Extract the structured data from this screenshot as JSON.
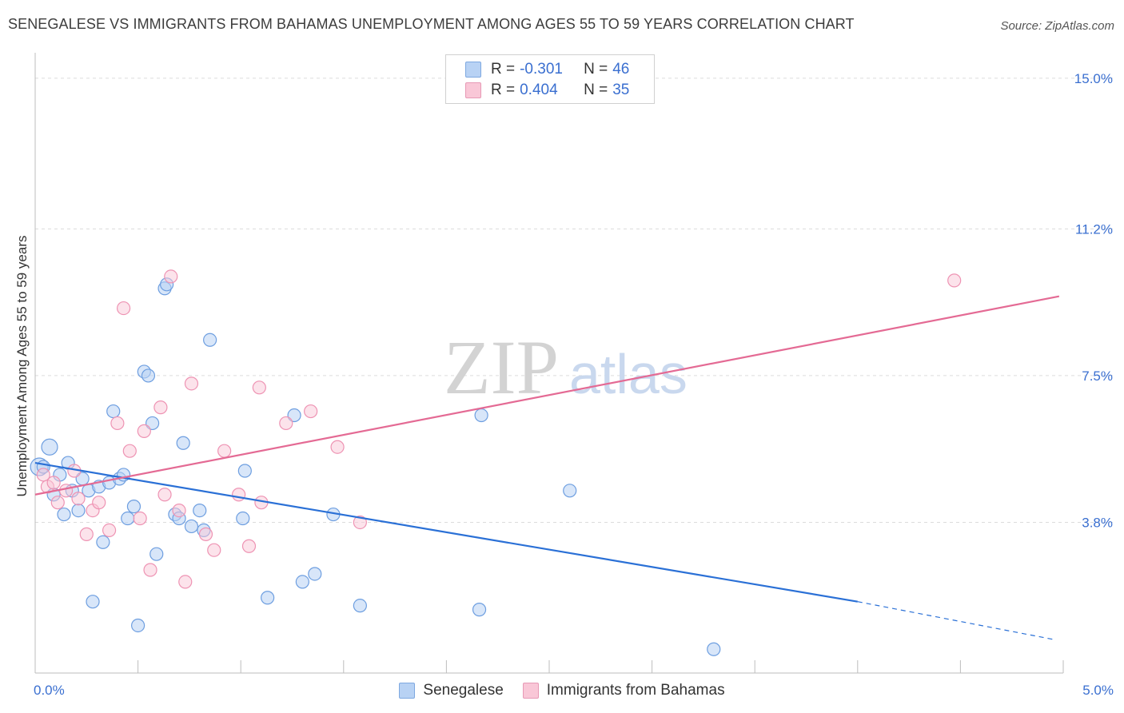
{
  "title": "SENEGALESE VS IMMIGRANTS FROM BAHAMAS UNEMPLOYMENT AMONG AGES 55 TO 59 YEARS CORRELATION CHART",
  "source": "Source: ZipAtlas.com",
  "watermark": {
    "zip": "ZIP",
    "atlas": "atlas"
  },
  "legend": {
    "r_label": "R =",
    "n_label": "N =",
    "series": [
      {
        "name": "Senegalese",
        "r": "-0.301",
        "n": "46"
      },
      {
        "name": "Immigrants from Bahamas",
        "r": "0.404",
        "n": "35"
      }
    ]
  },
  "chart_data": {
    "type": "scatter",
    "title": "SENEGALESE VS IMMIGRANTS FROM BAHAMAS UNEMPLOYMENT AMONG AGES 55 TO 59 YEARS CORRELATION CHART",
    "xlabel": "",
    "ylabel": "Unemployment Among Ages 55 to 59 years",
    "xlim": [
      0,
      5
    ],
    "ylim": [
      0,
      15.4
    ],
    "x_tick_labels": [
      {
        "value": 0,
        "label": "0.0%"
      },
      {
        "value": 5,
        "label": "5.0%"
      }
    ],
    "y_ticks": [
      {
        "value": 3.8,
        "label": "3.8%"
      },
      {
        "value": 7.5,
        "label": "7.5%"
      },
      {
        "value": 11.2,
        "label": "11.2%"
      },
      {
        "value": 15.0,
        "label": "15.0%"
      }
    ],
    "grid": true,
    "legend_position": "top-center",
    "colors": {
      "senegalese": "#6d9ee0",
      "bahamas": "#ee93b3",
      "blue_line": "#2a70d6",
      "pink_line": "#e46a94"
    },
    "series": [
      {
        "name": "Senegalese",
        "points": [
          [
            0.02,
            5.2
          ],
          [
            0.04,
            5.2
          ],
          [
            0.07,
            5.7
          ],
          [
            0.09,
            4.5
          ],
          [
            0.12,
            5.0
          ],
          [
            0.14,
            4.0
          ],
          [
            0.16,
            5.3
          ],
          [
            0.18,
            4.6
          ],
          [
            0.21,
            4.1
          ],
          [
            0.23,
            4.9
          ],
          [
            0.26,
            4.6
          ],
          [
            0.28,
            1.8
          ],
          [
            0.31,
            4.7
          ],
          [
            0.33,
            3.3
          ],
          [
            0.36,
            4.8
          ],
          [
            0.38,
            6.6
          ],
          [
            0.41,
            4.9
          ],
          [
            0.43,
            5.0
          ],
          [
            0.45,
            3.9
          ],
          [
            0.48,
            4.2
          ],
          [
            0.5,
            1.2
          ],
          [
            0.53,
            7.6
          ],
          [
            0.55,
            7.5
          ],
          [
            0.57,
            6.3
          ],
          [
            0.59,
            3.0
          ],
          [
            0.63,
            9.7
          ],
          [
            0.64,
            9.8
          ],
          [
            0.68,
            4.0
          ],
          [
            0.7,
            3.9
          ],
          [
            0.72,
            5.8
          ],
          [
            0.76,
            3.7
          ],
          [
            0.8,
            4.1
          ],
          [
            0.82,
            3.6
          ],
          [
            0.85,
            8.4
          ],
          [
            1.02,
            5.1
          ],
          [
            1.01,
            3.9
          ],
          [
            1.13,
            1.9
          ],
          [
            1.26,
            6.5
          ],
          [
            1.3,
            2.3
          ],
          [
            1.36,
            2.5
          ],
          [
            1.45,
            4.0
          ],
          [
            1.58,
            1.7
          ],
          [
            2.17,
            6.5
          ],
          [
            2.16,
            1.6
          ],
          [
            2.6,
            4.6
          ],
          [
            3.3,
            0.6
          ]
        ],
        "trend": {
          "x": [
            0,
            4.0
          ],
          "y": [
            5.3,
            1.8
          ],
          "dashed_to": [
            4.95,
            0.85
          ]
        }
      },
      {
        "name": "Immigrants from Bahamas",
        "points": [
          [
            0.04,
            5.0
          ],
          [
            0.06,
            4.7
          ],
          [
            0.09,
            4.8
          ],
          [
            0.11,
            4.3
          ],
          [
            0.15,
            4.6
          ],
          [
            0.19,
            5.1
          ],
          [
            0.21,
            4.4
          ],
          [
            0.25,
            3.5
          ],
          [
            0.28,
            4.1
          ],
          [
            0.31,
            4.3
          ],
          [
            0.36,
            3.6
          ],
          [
            0.4,
            6.3
          ],
          [
            0.43,
            9.2
          ],
          [
            0.46,
            5.6
          ],
          [
            0.51,
            3.9
          ],
          [
            0.53,
            6.1
          ],
          [
            0.56,
            2.6
          ],
          [
            0.61,
            6.7
          ],
          [
            0.63,
            4.5
          ],
          [
            0.66,
            10.0
          ],
          [
            0.7,
            4.1
          ],
          [
            0.73,
            2.3
          ],
          [
            0.76,
            7.3
          ],
          [
            0.83,
            3.5
          ],
          [
            0.87,
            3.1
          ],
          [
            0.92,
            5.6
          ],
          [
            0.99,
            4.5
          ],
          [
            1.04,
            3.2
          ],
          [
            1.09,
            7.2
          ],
          [
            1.1,
            4.3
          ],
          [
            1.22,
            6.3
          ],
          [
            1.34,
            6.6
          ],
          [
            1.47,
            5.7
          ],
          [
            1.58,
            3.8
          ],
          [
            4.47,
            9.9
          ]
        ],
        "trend": {
          "x": [
            0,
            4.98
          ],
          "y": [
            4.5,
            9.5
          ]
        }
      }
    ]
  }
}
